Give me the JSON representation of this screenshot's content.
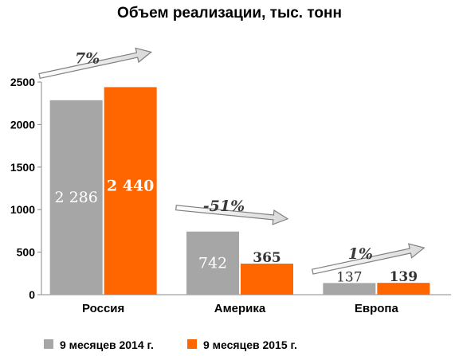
{
  "chart_data": {
    "type": "bar",
    "title": "Объем реализации, тыс. тонн",
    "categories": [
      "Россия",
      "Америка",
      "Европа"
    ],
    "series": [
      {
        "name": "9 месяцев 2014 г.",
        "values": [
          2286,
          742,
          137
        ],
        "labels": [
          "2 286",
          "742",
          "137"
        ],
        "color": "#a6a6a6"
      },
      {
        "name": "9 месяцев 2015 г.",
        "values": [
          2440,
          365,
          139
        ],
        "labels": [
          "2 440",
          "365",
          "139"
        ],
        "color": "#ff6600"
      }
    ],
    "changes": [
      "7%",
      "-51%",
      "1%"
    ],
    "ylim": [
      0,
      2500
    ],
    "yticks": [
      0,
      500,
      1000,
      1500,
      2000,
      2500
    ],
    "xlabel": "",
    "ylabel": "",
    "grid": false,
    "legend_position": "bottom"
  }
}
